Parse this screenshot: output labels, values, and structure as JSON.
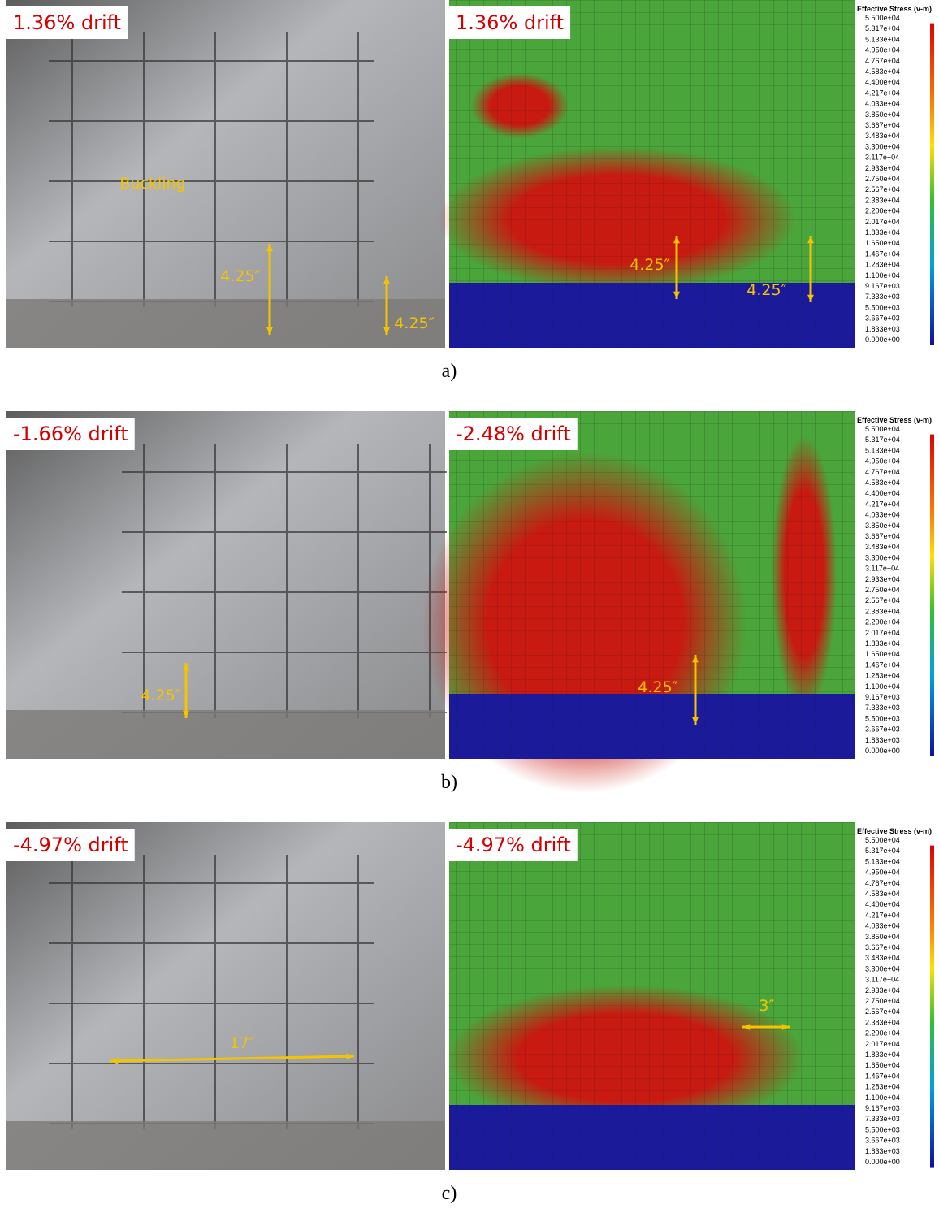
{
  "panels": [
    {
      "caption": "a)",
      "photo": {
        "drift": "1.36% drift",
        "annotations": [
          "Buckling",
          "4.25″",
          "4.25″"
        ]
      },
      "model": {
        "drift": "1.36% drift",
        "annotations": [
          "4.25″",
          "4.25″"
        ]
      }
    },
    {
      "caption": "b)",
      "photo": {
        "drift": "-1.66% drift",
        "annotations": [
          "4.25″"
        ]
      },
      "model": {
        "drift": "-2.48% drift",
        "annotations": [
          "4.25″"
        ]
      }
    },
    {
      "caption": "c)",
      "photo": {
        "drift": "-4.97% drift",
        "annotations": [
          "17″"
        ]
      },
      "model": {
        "drift": "-4.97% drift",
        "annotations": [
          "3″"
        ]
      }
    }
  ],
  "legend": {
    "title": "Effective Stress (v-m)",
    "labels": [
      "5.500e+04",
      "5.317e+04",
      "5.133e+04",
      "4.950e+04",
      "4.767e+04",
      "4.583e+04",
      "4.400e+04",
      "4.217e+04",
      "4.033e+04",
      "3.850e+04",
      "3.667e+04",
      "3.483e+04",
      "3.300e+04",
      "3.117e+04",
      "2.933e+04",
      "2.750e+04",
      "2.567e+04",
      "2.383e+04",
      "2.200e+04",
      "2.017e+04",
      "1.833e+04",
      "1.650e+04",
      "1.467e+04",
      "1.283e+04",
      "1.100e+04",
      "9.167e+03",
      "7.333e+03",
      "5.500e+03",
      "3.667e+03",
      "1.833e+03",
      "0.000e+00"
    ]
  }
}
